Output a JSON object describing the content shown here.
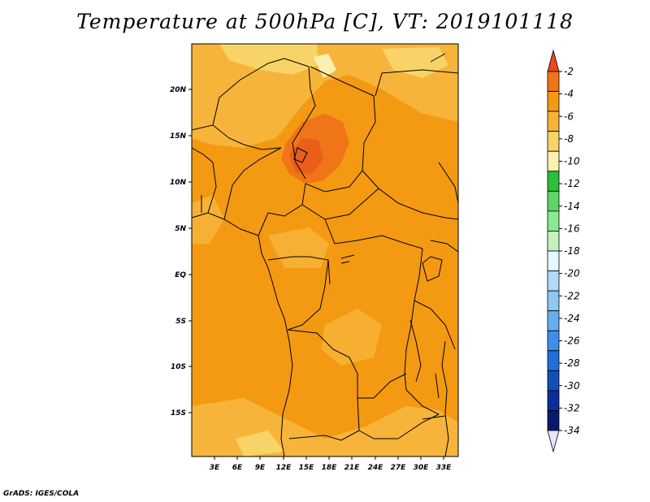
{
  "title": "Temperature at 500hPa [C], VT: 2019101118",
  "credit": "GrADS: IGES/COLA",
  "map": {
    "lat_labels": [
      "20N",
      "15N",
      "10N",
      "5N",
      "EQ",
      "5S",
      "10S",
      "15S"
    ],
    "lon_labels": [
      "3E",
      "6E",
      "9E",
      "12E",
      "15E",
      "18E",
      "21E",
      "24E",
      "27E",
      "30E",
      "33E"
    ],
    "dominant_band": "-6 to -4",
    "warm_core_band": "-4 to -2"
  },
  "colorbar": {
    "labels": [
      "-2",
      "-4",
      "-6",
      "-8",
      "-10",
      "-12",
      "-14",
      "-16",
      "-18",
      "-20",
      "-22",
      "-24",
      "-26",
      "-28",
      "-30",
      "-32",
      "-34"
    ],
    "colors": [
      "#e84a1c",
      "#f07418",
      "#f39a12",
      "#f6b43a",
      "#f8d468",
      "#fbf0b0",
      "#2bbf3a",
      "#5fd46a",
      "#8ce890",
      "#c3f2c0",
      "#e6f8ff",
      "#b2daf6",
      "#8ec7f2",
      "#66aef0",
      "#3d8ee8",
      "#1f6fd6",
      "#1250b8",
      "#0b2f96",
      "#071a6c",
      "#e6e6f8"
    ]
  }
}
